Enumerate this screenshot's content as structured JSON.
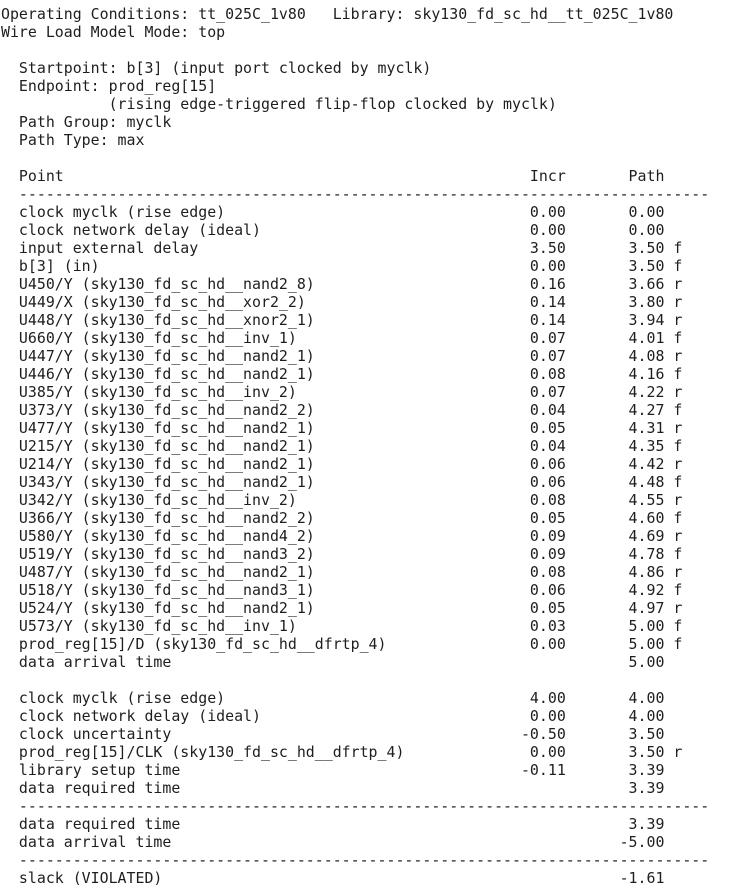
{
  "report": {
    "lines": [
      "Operating Conditions: tt_025C_1v80   Library: sky130_fd_sc_hd__tt_025C_1v80",
      "Wire Load Model Mode: top",
      "",
      "  Startpoint: b[3] (input port clocked by myclk)",
      "  Endpoint: prod_reg[15]",
      "            (rising edge-triggered flip-flop clocked by myclk)",
      "  Path Group: myclk",
      "  Path Type: max",
      "",
      "  Point                                                    Incr       Path",
      "  -----------------------------------------------------------------------------",
      "  clock myclk (rise edge)                                  0.00       0.00",
      "  clock network delay (ideal)                              0.00       0.00",
      "  input external delay                                     3.50       3.50 f",
      "  b[3] (in)                                                0.00       3.50 f",
      "  U450/Y (sky130_fd_sc_hd__nand2_8)                        0.16       3.66 r",
      "  U449/X (sky130_fd_sc_hd__xor2_2)                         0.14       3.80 r",
      "  U448/Y (sky130_fd_sc_hd__xnor2_1)                        0.14       3.94 r",
      "  U660/Y (sky130_fd_sc_hd__inv_1)                          0.07       4.01 f",
      "  U447/Y (sky130_fd_sc_hd__nand2_1)                        0.07       4.08 r",
      "  U446/Y (sky130_fd_sc_hd__nand2_1)                        0.08       4.16 f",
      "  U385/Y (sky130_fd_sc_hd__inv_2)                          0.07       4.22 r",
      "  U373/Y (sky130_fd_sc_hd__nand2_2)                        0.04       4.27 f",
      "  U477/Y (sky130_fd_sc_hd__nand2_1)                        0.05       4.31 r",
      "  U215/Y (sky130_fd_sc_hd__nand2_1)                        0.04       4.35 f",
      "  U214/Y (sky130_fd_sc_hd__nand2_1)                        0.06       4.42 r",
      "  U343/Y (sky130_fd_sc_hd__nand2_1)                        0.06       4.48 f",
      "  U342/Y (sky130_fd_sc_hd__inv_2)                          0.08       4.55 r",
      "  U366/Y (sky130_fd_sc_hd__nand2_2)                        0.05       4.60 f",
      "  U580/Y (sky130_fd_sc_hd__nand4_2)                        0.09       4.69 r",
      "  U519/Y (sky130_fd_sc_hd__nand3_2)                        0.09       4.78 f",
      "  U487/Y (sky130_fd_sc_hd__nand2_1)                        0.08       4.86 r",
      "  U518/Y (sky130_fd_sc_hd__nand3_1)                        0.06       4.92 f",
      "  U524/Y (sky130_fd_sc_hd__nand2_1)                        0.05       4.97 r",
      "  U573/Y (sky130_fd_sc_hd__inv_1)                          0.03       5.00 f",
      "  prod_reg[15]/D (sky130_fd_sc_hd__dfrtp_4)                0.00       5.00 f",
      "  data arrival time                                                   5.00",
      "",
      "  clock myclk (rise edge)                                  4.00       4.00",
      "  clock network delay (ideal)                              0.00       4.00",
      "  clock uncertainty                                       -0.50       3.50",
      "  prod_reg[15]/CLK (sky130_fd_sc_hd__dfrtp_4)              0.00       3.50 r",
      "  library setup time                                      -0.11       3.39",
      "  data required time                                                  3.39",
      "  -----------------------------------------------------------------------------",
      "  data required time                                                  3.39",
      "  data arrival time                                                  -5.00",
      "  -----------------------------------------------------------------------------",
      "  slack (VIOLATED)                                                   -1.61"
    ]
  }
}
